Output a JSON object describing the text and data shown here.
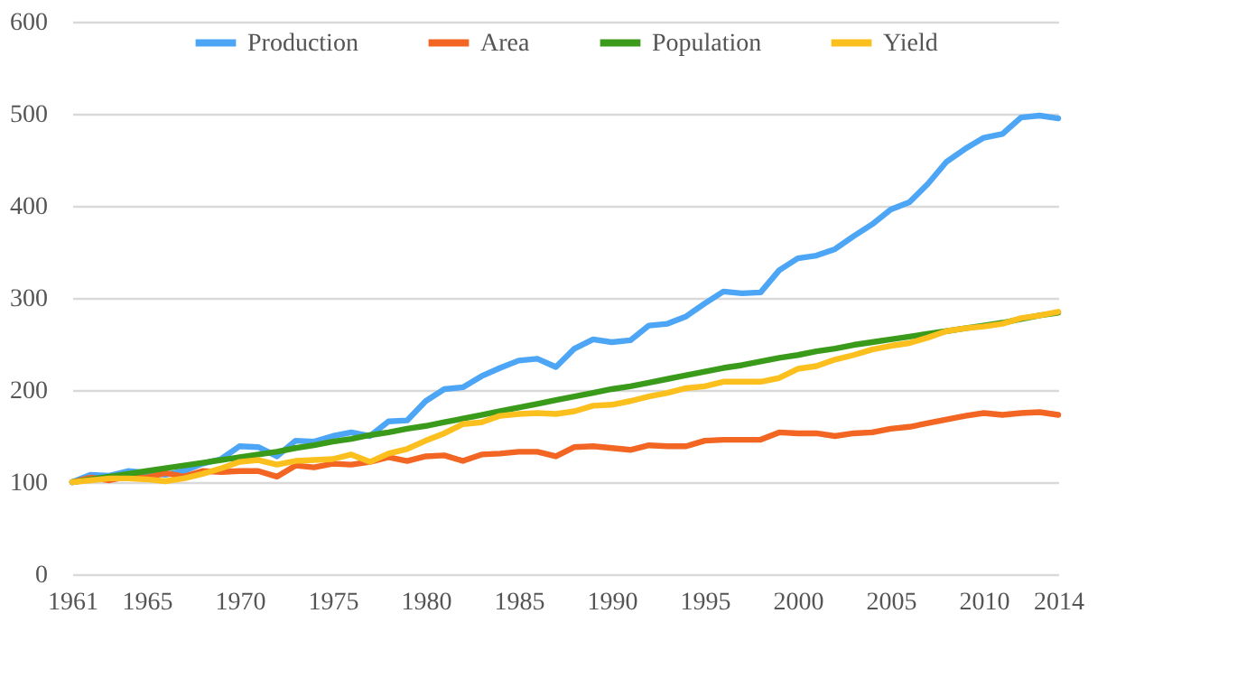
{
  "chart_data": {
    "type": "line",
    "x": [
      1961,
      1962,
      1963,
      1964,
      1965,
      1966,
      1967,
      1968,
      1969,
      1970,
      1971,
      1972,
      1973,
      1974,
      1975,
      1976,
      1977,
      1978,
      1979,
      1980,
      1981,
      1982,
      1983,
      1984,
      1985,
      1986,
      1987,
      1988,
      1989,
      1990,
      1991,
      1992,
      1993,
      1994,
      1995,
      1996,
      1997,
      1998,
      1999,
      2000,
      2001,
      2002,
      2003,
      2004,
      2005,
      2006,
      2007,
      2008,
      2009,
      2010,
      2011,
      2012,
      2013,
      2014
    ],
    "series": [
      {
        "name": "Production",
        "color": "#4da6f5",
        "values": [
          100,
          108,
          107,
          112,
          110,
          108,
          112,
          120,
          125,
          139,
          138,
          128,
          145,
          144,
          150,
          154,
          150,
          166,
          167,
          188,
          201,
          203,
          215,
          224,
          232,
          234,
          225,
          245,
          255,
          252,
          254,
          270,
          272,
          280,
          294,
          307,
          305,
          306,
          330,
          343,
          346,
          353,
          367,
          380,
          396,
          404,
          424,
          448,
          462,
          474,
          478,
          496,
          498,
          495
        ]
      },
      {
        "name": "Area",
        "color": "#f26522",
        "values": [
          100,
          105,
          102,
          106,
          105,
          110,
          106,
          112,
          111,
          112,
          112,
          106,
          118,
          116,
          120,
          119,
          122,
          127,
          123,
          128,
          129,
          123,
          130,
          131,
          133,
          133,
          128,
          138,
          139,
          137,
          135,
          140,
          139,
          139,
          145,
          146,
          146,
          146,
          154,
          153,
          153,
          150,
          153,
          154,
          158,
          160,
          164,
          168,
          172,
          175,
          173,
          175,
          176,
          173
        ]
      },
      {
        "name": "Population",
        "color": "#3a9a1a",
        "values": [
          100,
          103,
          106,
          109,
          112,
          115,
          118,
          121,
          124,
          127,
          130,
          133,
          137,
          140,
          144,
          147,
          151,
          154,
          158,
          161,
          165,
          169,
          173,
          177,
          181,
          185,
          189,
          193,
          197,
          201,
          204,
          208,
          212,
          216,
          220,
          224,
          227,
          231,
          235,
          238,
          242,
          245,
          249,
          252,
          255,
          258,
          261,
          264,
          267,
          270,
          273,
          277,
          281,
          284
        ]
      },
      {
        "name": "Yield",
        "color": "#fbbf1e",
        "values": [
          100,
          102,
          104,
          104,
          103,
          101,
          104,
          109,
          115,
          122,
          124,
          119,
          123,
          124,
          125,
          130,
          122,
          131,
          136,
          145,
          153,
          163,
          165,
          172,
          174,
          175,
          174,
          177,
          183,
          184,
          188,
          193,
          197,
          202,
          204,
          209,
          209,
          209,
          213,
          223,
          226,
          233,
          238,
          244,
          248,
          251,
          257,
          264,
          267,
          269,
          272,
          278,
          281,
          285
        ]
      }
    ],
    "xlim": [
      1961,
      2014
    ],
    "xticks": [
      1961,
      1965,
      1970,
      1975,
      1980,
      1985,
      1990,
      1995,
      2000,
      2005,
      2010,
      2014
    ],
    "ylim": [
      0,
      600
    ],
    "yticks": [
      0,
      100,
      200,
      300,
      400,
      500,
      600
    ],
    "grid": "y",
    "legend": "top",
    "marker": "none",
    "line_style": "solid"
  }
}
